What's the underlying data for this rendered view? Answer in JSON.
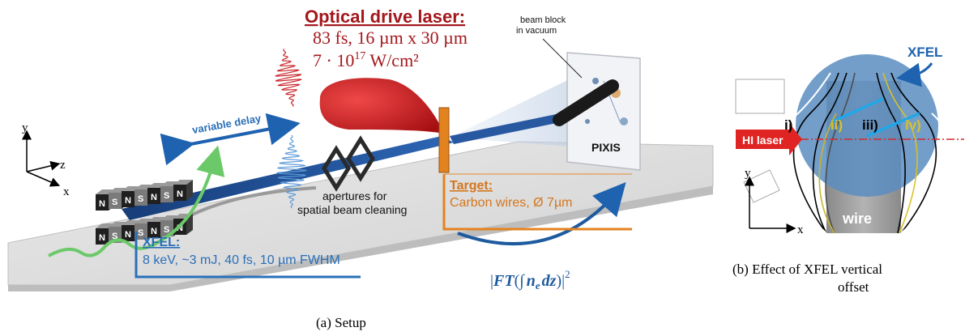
{
  "panel_a": {
    "caption": "(a) Setup",
    "drive_laser": {
      "title": "Optical drive laser:",
      "line1": "83 fs, 16 µm x 30 µm",
      "line2_base": "7 · 10",
      "line2_exp": "17",
      "line2_unit": " W/cm²"
    },
    "beam_block": {
      "line1": "beam block",
      "line2": "in vacuum"
    },
    "detector": "PIXIS",
    "variable_delay": "variable delay",
    "apertures": {
      "line1": "apertures for",
      "line2": "spatial beam cleaning"
    },
    "target": {
      "title": "Target:",
      "desc": "Carbon wires, Ø 7µm"
    },
    "xfel": {
      "title": "XFEL:",
      "desc": "8 keV, ~3 mJ, 40 fs, 10 µm FWHM"
    },
    "formula": {
      "left_bar": "|",
      "ft": "FT",
      "open": "(",
      "integral": "∫",
      "n": "n",
      "sub": "e",
      "dz": "dz",
      "close": ")",
      "right_bar": "|",
      "power": "2"
    },
    "axes": {
      "y": "y",
      "z": "z",
      "x": "x"
    },
    "magnet_label": "S",
    "magnet_label_alt": "N"
  },
  "panel_b": {
    "caption_line1": "(b) Effect of XFEL vertical",
    "caption_line2": "offset",
    "xfel_label": "XFEL",
    "hi_laser": "HI laser",
    "labels": [
      "i)",
      "ii)",
      "iii)",
      "iv)"
    ],
    "wire": "wire",
    "axes": {
      "y": "y",
      "x": "x"
    }
  },
  "colors": {
    "red_text": "#a3171c",
    "orange": "#d4761e",
    "blue_text": "#2a6fb8",
    "beam_blue": "#1e4f96",
    "circle_blue": "#5a8dc0",
    "label_yellow": "#d8c12b"
  }
}
